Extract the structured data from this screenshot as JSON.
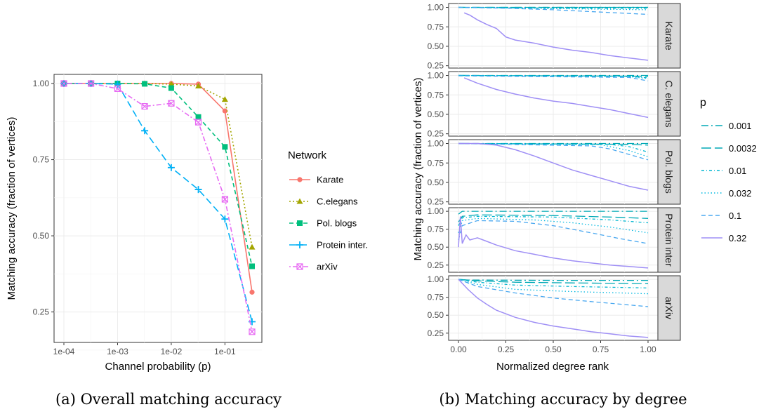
{
  "colors": {
    "Karate": "#F8766D",
    "C.elegans": "#A3A500",
    "Pol. blogs": "#00BF7D",
    "Protein inter.": "#00B0F6",
    "arXiv": "#E76BF3",
    "p_0.001": "#00A9B5",
    "p_0.0032": "#00A9B5",
    "p_0.01": "#00B6D0",
    "p_0.032": "#00B8E0",
    "p_0.1": "#4AA8F0",
    "p_0.32": "#9F8FF5",
    "panel_bg": "#ffffff",
    "grid": "#EBEBEB",
    "strip_bg": "#D9D9D9"
  },
  "captions": {
    "a": "(a) Overall matching accuracy",
    "b": "(b) Matching accuracy by degree"
  },
  "chart_data": [
    {
      "type": "line",
      "id": "a",
      "xlabel": "Channel probability (p)",
      "ylabel": "Matching accuracy (fraction of vertices)",
      "xscale": "log",
      "xlim": [
        0.0001,
        0.32
      ],
      "ylim": [
        0.15,
        1.03
      ],
      "xticks": [
        0.0001,
        0.001,
        0.01,
        0.1
      ],
      "xtick_labels": [
        "1e-04",
        "1e-03",
        "1e-02",
        "1e-01"
      ],
      "yticks": [
        0.25,
        0.5,
        0.75,
        1.0
      ],
      "ytick_labels": [
        "0.25",
        "0.50",
        "0.75",
        "1.00"
      ],
      "grid": true,
      "legend": {
        "title": "Network",
        "position": "right"
      },
      "x": [
        0.0001,
        0.00032,
        0.001,
        0.0032,
        0.01,
        0.032,
        0.1,
        0.32
      ],
      "series": [
        {
          "name": "Karate",
          "marker": "circle",
          "dash": "solid",
          "values": [
            1.0,
            1.0,
            1.0,
            1.0,
            1.0,
            0.998,
            0.91,
            0.315
          ]
        },
        {
          "name": "C.elegans",
          "marker": "triangle",
          "dash": "dotted",
          "values": [
            1.0,
            1.0,
            1.0,
            1.0,
            0.998,
            0.992,
            0.948,
            0.463
          ]
        },
        {
          "name": "Pol. blogs",
          "marker": "square",
          "dash": "dashed",
          "values": [
            1.0,
            1.0,
            1.0,
            0.999,
            0.985,
            0.89,
            0.792,
            0.4
          ]
        },
        {
          "name": "Protein inter.",
          "marker": "cross",
          "dash": "longdash",
          "values": [
            1.0,
            1.0,
            0.998,
            0.845,
            0.724,
            0.652,
            0.555,
            0.218
          ]
        },
        {
          "name": "arXiv",
          "marker": "squarecross",
          "dash": "dotdash",
          "values": [
            1.0,
            1.0,
            0.983,
            0.925,
            0.935,
            0.873,
            0.62,
            0.185
          ]
        }
      ]
    },
    {
      "type": "line",
      "id": "b",
      "xlabel": "Normalized degree rank",
      "ylabel": "Matching accuracy (fraction of vertices)",
      "xlim": [
        0,
        1
      ],
      "xticks": [
        0,
        0.25,
        0.5,
        0.75,
        1.0
      ],
      "xtick_labels": [
        "0.00",
        "0.25",
        "0.50",
        "0.75",
        "1.00"
      ],
      "yticks": [
        0.25,
        0.5,
        0.75,
        1.0
      ],
      "ytick_labels": [
        "0.25",
        "0.50",
        "0.75",
        "1.00"
      ],
      "grid": true,
      "legend": {
        "title": "p",
        "position": "right",
        "entries": [
          "0.001",
          "0.0032",
          "0.01",
          "0.032",
          "0.1",
          "0.32"
        ]
      },
      "facets": [
        {
          "label": "Karate",
          "ylim": [
            0.22,
            1.05
          ],
          "series": [
            {
              "p": "0.001",
              "x": [
                0,
                1
              ],
              "y": [
                1.0,
                1.0
              ]
            },
            {
              "p": "0.0032",
              "x": [
                0,
                1
              ],
              "y": [
                1.0,
                1.0
              ]
            },
            {
              "p": "0.01",
              "x": [
                0,
                0.5,
                1
              ],
              "y": [
                1.0,
                0.99,
                0.99
              ]
            },
            {
              "p": "0.032",
              "x": [
                0,
                0.5,
                1
              ],
              "y": [
                1.0,
                0.985,
                0.97
              ]
            },
            {
              "p": "0.1",
              "x": [
                0,
                0.25,
                0.5,
                0.75,
                1
              ],
              "y": [
                1.0,
                0.99,
                0.97,
                0.94,
                0.91
              ]
            },
            {
              "p": "0.32",
              "x": [
                0.03,
                0.06,
                0.1,
                0.15,
                0.2,
                0.25,
                0.3,
                0.4,
                0.5,
                0.6,
                0.7,
                0.8,
                0.9,
                1.0
              ],
              "y": [
                0.93,
                0.9,
                0.84,
                0.78,
                0.73,
                0.62,
                0.58,
                0.54,
                0.49,
                0.45,
                0.42,
                0.38,
                0.35,
                0.32
              ]
            }
          ]
        },
        {
          "label": "C. elegans",
          "ylim": [
            0.22,
            1.05
          ],
          "series": [
            {
              "p": "0.001",
              "x": [
                0,
                1
              ],
              "y": [
                1.0,
                1.0
              ]
            },
            {
              "p": "0.0032",
              "x": [
                0,
                1
              ],
              "y": [
                1.0,
                0.99
              ]
            },
            {
              "p": "0.01",
              "x": [
                0,
                0.9,
                1
              ],
              "y": [
                1.0,
                0.99,
                0.97
              ]
            },
            {
              "p": "0.032",
              "x": [
                0,
                0.9,
                1
              ],
              "y": [
                1.0,
                0.985,
                0.96
              ]
            },
            {
              "p": "0.1",
              "x": [
                0,
                0.9,
                1
              ],
              "y": [
                0.995,
                0.975,
                0.93
              ]
            },
            {
              "p": "0.32",
              "x": [
                0.03,
                0.1,
                0.2,
                0.3,
                0.4,
                0.5,
                0.6,
                0.7,
                0.8,
                0.9,
                1.0
              ],
              "y": [
                0.97,
                0.9,
                0.82,
                0.76,
                0.71,
                0.67,
                0.64,
                0.6,
                0.56,
                0.51,
                0.46
              ]
            }
          ]
        },
        {
          "label": "Pol. blogs",
          "ylim": [
            0.22,
            1.05
          ],
          "series": [
            {
              "p": "0.001",
              "x": [
                0,
                1
              ],
              "y": [
                1.0,
                1.0
              ]
            },
            {
              "p": "0.0032",
              "x": [
                0,
                0.9,
                1
              ],
              "y": [
                1.0,
                0.99,
                0.98
              ]
            },
            {
              "p": "0.01",
              "x": [
                0,
                0.8,
                0.9,
                1
              ],
              "y": [
                1.0,
                0.99,
                0.96,
                0.89
              ]
            },
            {
              "p": "0.032",
              "x": [
                0,
                0.75,
                0.9,
                1
              ],
              "y": [
                1.0,
                0.985,
                0.91,
                0.83
              ]
            },
            {
              "p": "0.1",
              "x": [
                0,
                0.7,
                0.8,
                0.9,
                1
              ],
              "y": [
                1.0,
                0.97,
                0.93,
                0.86,
                0.79
              ]
            },
            {
              "p": "0.32",
              "x": [
                0,
                0.1,
                0.2,
                0.3,
                0.4,
                0.5,
                0.6,
                0.7,
                0.8,
                0.9,
                1.0
              ],
              "y": [
                1.0,
                1.0,
                0.98,
                0.92,
                0.84,
                0.75,
                0.66,
                0.59,
                0.52,
                0.45,
                0.4
              ]
            }
          ]
        },
        {
          "label": "Protein inter",
          "ylim": [
            0.15,
            1.05
          ],
          "series": [
            {
              "p": "0.001",
              "x": [
                0,
                0.02,
                0.04,
                1
              ],
              "y": [
                0.96,
                1.0,
                1.0,
                1.0
              ]
            },
            {
              "p": "0.0032",
              "x": [
                0,
                0.02,
                0.1,
                0.5,
                0.8,
                1
              ],
              "y": [
                0.85,
                0.93,
                0.95,
                0.94,
                0.92,
                0.9
              ]
            },
            {
              "p": "0.01",
              "x": [
                0,
                0.02,
                0.1,
                0.5,
                0.8,
                1
              ],
              "y": [
                0.8,
                0.91,
                0.93,
                0.92,
                0.88,
                0.84
              ]
            },
            {
              "p": "0.032",
              "x": [
                0,
                0.02,
                0.1,
                0.4,
                0.6,
                0.8,
                1
              ],
              "y": [
                0.7,
                0.87,
                0.9,
                0.88,
                0.84,
                0.78,
                0.7
              ]
            },
            {
              "p": "0.1",
              "x": [
                0,
                0.02,
                0.1,
                0.3,
                0.5,
                0.7,
                0.85,
                1
              ],
              "y": [
                0.6,
                0.8,
                0.87,
                0.86,
                0.8,
                0.7,
                0.62,
                0.55
              ]
            },
            {
              "p": "0.32",
              "x": [
                0,
                0.01,
                0.02,
                0.04,
                0.06,
                0.1,
                0.15,
                0.2,
                0.3,
                0.4,
                0.5,
                0.6,
                0.7,
                0.8,
                0.9,
                1.0
              ],
              "y": [
                0.5,
                0.93,
                0.55,
                0.67,
                0.6,
                0.63,
                0.58,
                0.53,
                0.45,
                0.4,
                0.35,
                0.31,
                0.28,
                0.25,
                0.23,
                0.21
              ]
            }
          ]
        },
        {
          "label": "arXiv",
          "ylim": [
            0.15,
            1.05
          ],
          "series": [
            {
              "p": "0.001",
              "x": [
                0,
                0.05,
                0.5,
                1
              ],
              "y": [
                1.0,
                0.99,
                0.985,
                0.985
              ]
            },
            {
              "p": "0.0032",
              "x": [
                0,
                0.1,
                0.3,
                0.6,
                1
              ],
              "y": [
                1.0,
                0.98,
                0.96,
                0.95,
                0.94
              ]
            },
            {
              "p": "0.01",
              "x": [
                0,
                0.1,
                0.3,
                0.6,
                1
              ],
              "y": [
                1.0,
                0.96,
                0.92,
                0.9,
                0.88
              ]
            },
            {
              "p": "0.032",
              "x": [
                0,
                0.1,
                0.3,
                0.6,
                1
              ],
              "y": [
                1.0,
                0.93,
                0.86,
                0.83,
                0.8
              ]
            },
            {
              "p": "0.1",
              "x": [
                0,
                0.1,
                0.3,
                0.5,
                0.7,
                1
              ],
              "y": [
                1.0,
                0.9,
                0.81,
                0.74,
                0.69,
                0.62
              ]
            },
            {
              "p": "0.32",
              "x": [
                0,
                0.05,
                0.1,
                0.15,
                0.2,
                0.3,
                0.4,
                0.5,
                0.6,
                0.7,
                0.8,
                0.9,
                1.0
              ],
              "y": [
                1.0,
                0.86,
                0.74,
                0.65,
                0.57,
                0.47,
                0.4,
                0.35,
                0.31,
                0.27,
                0.24,
                0.21,
                0.19
              ]
            }
          ]
        }
      ]
    }
  ]
}
